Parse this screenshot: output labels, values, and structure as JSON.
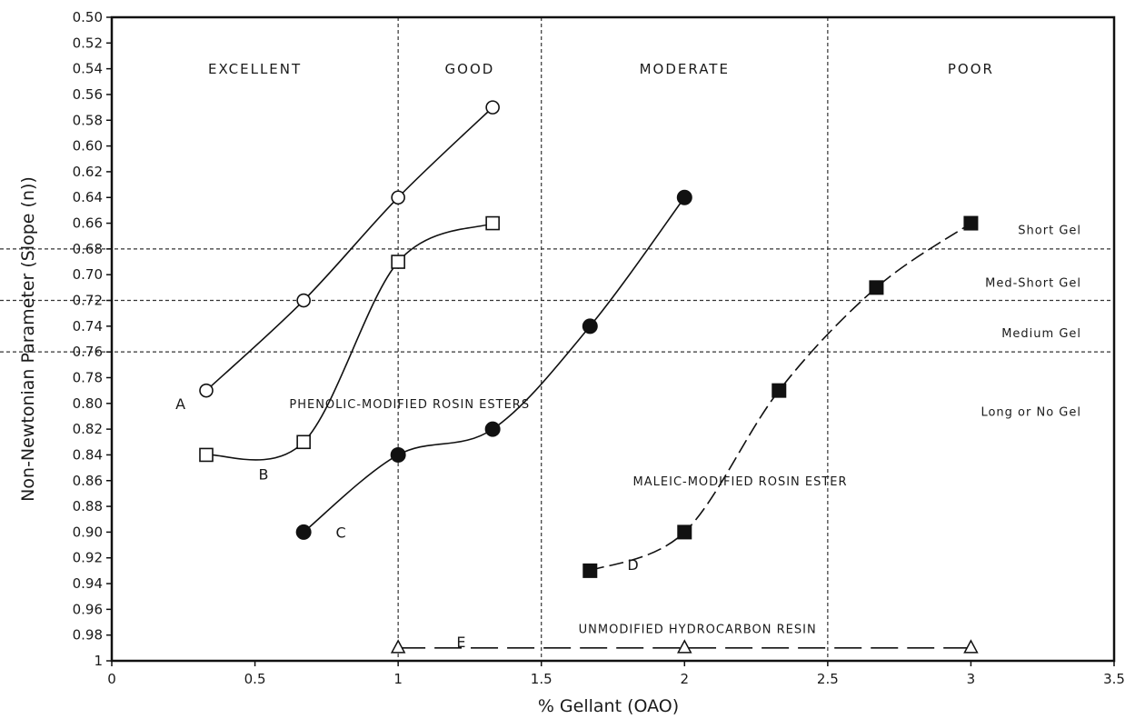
{
  "chart_data": {
    "type": "line",
    "title": "",
    "xlabel": "% Gellant (OAO)",
    "ylabel": "Non-Newtonian Parameter (Slope (n))",
    "xlim": [
      0,
      3.5
    ],
    "ylim": [
      0.5,
      1.0
    ],
    "y_inverted": true,
    "x_ticks": [
      0,
      0.5,
      1,
      1.5,
      2,
      2.5,
      3,
      3.5
    ],
    "x_tick_labels": [
      "0",
      "0.5",
      "1",
      "1.5",
      "2",
      "2.5",
      "3",
      "3.5"
    ],
    "y_ticks": [
      0.5,
      0.52,
      0.54,
      0.56,
      0.58,
      0.6,
      0.62,
      0.64,
      0.66,
      0.68,
      0.7,
      0.72,
      0.74,
      0.76,
      0.78,
      0.8,
      0.82,
      0.84,
      0.86,
      0.88,
      0.9,
      0.92,
      0.94,
      0.96,
      0.98,
      1.0
    ],
    "y_tick_labels": [
      "0.50",
      "0.52",
      "0.54",
      "0.56",
      "0.58",
      "0.60",
      "0.62",
      "0.64",
      "0.66",
      "0.68",
      "0.70",
      "0.72",
      "0.74",
      "0.76",
      "0.78",
      "0.80",
      "0.82",
      "0.84",
      "0.86",
      "0.88",
      "0.90",
      "0.92",
      "0.94",
      "0.96",
      "0.98",
      "1"
    ],
    "grid": false,
    "vertical_dividers": [
      1,
      1.5,
      2.5
    ],
    "horizontal_dividers": [
      0.68,
      0.72,
      0.76
    ],
    "regions": [
      {
        "label": "EXCELLENT",
        "x": 0.5
      },
      {
        "label": "GOOD",
        "x": 1.25
      },
      {
        "label": "MODERATE",
        "x": 2.0
      },
      {
        "label": "POOR",
        "x": 3.0
      }
    ],
    "gel_labels": [
      "Short Gel",
      "Med-Short Gel",
      "Medium Gel",
      "Long or No Gel"
    ],
    "annotations": [
      "PHENOLIC-MODIFIED ROSIN ESTERS",
      "MALEIC-MODIFIED ROSIN ESTER",
      "UNMODIFIED HYDROCARBON RESIN"
    ],
    "series": [
      {
        "name": "A",
        "marker": "open-circle",
        "line": "solid",
        "x": [
          0.33,
          0.67,
          1.0,
          1.33
        ],
        "y": [
          0.79,
          0.72,
          0.64,
          0.57
        ]
      },
      {
        "name": "B",
        "marker": "open-square",
        "line": "solid",
        "x": [
          0.33,
          0.67,
          1.0,
          1.33
        ],
        "y": [
          0.84,
          0.83,
          0.69,
          0.66
        ]
      },
      {
        "name": "C",
        "marker": "filled-circle",
        "line": "solid",
        "x": [
          0.67,
          1.0,
          1.33,
          1.67,
          2.0
        ],
        "y": [
          0.9,
          0.84,
          0.82,
          0.74,
          0.64
        ]
      },
      {
        "name": "D",
        "marker": "filled-square",
        "line": "dashed",
        "x": [
          1.67,
          2.0,
          2.33,
          2.67,
          3.0
        ],
        "y": [
          0.93,
          0.9,
          0.79,
          0.71,
          0.66
        ]
      },
      {
        "name": "E",
        "marker": "open-triangle",
        "line": "long-dash",
        "x": [
          1.0,
          2.0,
          3.0
        ],
        "y": [
          0.99,
          0.99,
          0.99
        ]
      }
    ]
  }
}
